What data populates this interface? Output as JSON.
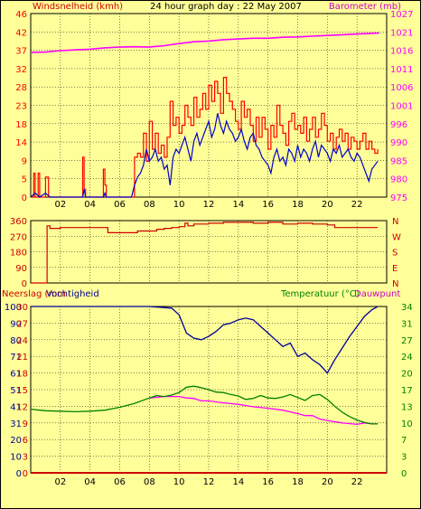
{
  "header": {
    "left_label": "Windsnelheid (kmh)",
    "title": "24 hour graph day : 22 May 2007",
    "right_label": "Barometer (mb)"
  },
  "colors": {
    "background": "#ffff99",
    "wind_gust": "#ff0000",
    "wind_avg": "#0000cc",
    "barometer": "#ff00ff",
    "direction": "#cc0000",
    "rain": "#cc0000",
    "humidity": "#000099",
    "temperature": "#008000",
    "dewpoint": "#ff00ff"
  },
  "chart_data": [
    {
      "type": "line",
      "name": "wind-and-barometer",
      "x_tick_labels": [
        "02",
        "04",
        "06",
        "08",
        "10",
        "12",
        "14",
        "16",
        "18",
        "20",
        "22"
      ],
      "x_range": [
        0,
        24
      ],
      "left_axis_ticks": [
        "46",
        "42",
        "37",
        "32",
        "28",
        "23",
        "18",
        "14",
        "9",
        "5",
        "0"
      ],
      "right_axis_ticks": [
        "1027",
        "1021",
        "1016",
        "1011",
        "1006",
        "1001",
        "996",
        "990",
        "985",
        "980",
        "975"
      ],
      "ylim_left": [
        0,
        46
      ],
      "ylim_right": [
        975,
        1027
      ],
      "grid": true,
      "series": [
        {
          "name": "Windsnelheid (kmh)",
          "role": "gust",
          "x": [
            0,
            0.2,
            0.3,
            0.4,
            0.5,
            0.6,
            0.8,
            1.0,
            1.2,
            2.0,
            3.4,
            3.5,
            3.6,
            3.7,
            4.5,
            4.9,
            5.0,
            5.1,
            5.3,
            6.8,
            7.0,
            7.2,
            7.4,
            7.6,
            7.8,
            8.0,
            8.2,
            8.4,
            8.6,
            8.8,
            9.0,
            9.2,
            9.4,
            9.6,
            9.8,
            10.0,
            10.2,
            10.4,
            10.6,
            10.8,
            11.0,
            11.2,
            11.4,
            11.6,
            11.8,
            12.0,
            12.2,
            12.4,
            12.6,
            12.8,
            13.0,
            13.2,
            13.4,
            13.6,
            13.8,
            14.0,
            14.2,
            14.4,
            14.6,
            14.8,
            15.0,
            15.2,
            15.4,
            15.6,
            15.8,
            16.0,
            16.2,
            16.4,
            16.6,
            16.8,
            17.0,
            17.2,
            17.4,
            17.6,
            17.8,
            18.0,
            18.2,
            18.4,
            18.6,
            18.8,
            19.0,
            19.2,
            19.4,
            19.6,
            19.8,
            20.0,
            20.2,
            20.4,
            20.6,
            20.8,
            21.0,
            21.2,
            21.4,
            21.6,
            21.8,
            22.0,
            22.2,
            22.4,
            22.6,
            22.8,
            23.0,
            23.2,
            23.4
          ],
          "y": [
            0,
            6,
            0,
            0,
            6,
            0,
            0,
            5,
            0,
            0,
            0,
            10,
            2,
            0,
            0,
            7,
            3,
            0,
            0,
            0,
            10,
            11,
            10,
            16,
            9,
            19,
            12,
            16,
            11,
            13,
            10,
            15,
            24,
            18,
            20,
            16,
            18,
            23,
            20,
            18,
            25,
            20,
            22,
            26,
            22,
            28,
            24,
            29,
            26,
            21,
            30,
            26,
            24,
            22,
            19,
            17,
            24,
            20,
            22,
            18,
            14,
            20,
            15,
            20,
            17,
            12,
            18,
            15,
            23,
            18,
            16,
            13,
            19,
            21,
            17,
            18,
            16,
            20,
            14,
            17,
            20,
            15,
            17,
            21,
            18,
            14,
            16,
            12,
            15,
            17,
            14,
            16,
            12,
            15,
            14,
            12,
            14,
            16,
            12,
            14,
            12,
            11,
            12
          ]
        },
        {
          "name": "Windsnelheid (kmh)",
          "role": "average",
          "x": [
            0,
            0.3,
            0.6,
            1.0,
            1.3,
            1.6,
            2.0,
            3.5,
            3.6,
            3.7,
            4.9,
            5.0,
            5.1,
            6.8,
            7.0,
            7.2,
            7.4,
            7.6,
            7.8,
            8.0,
            8.2,
            8.4,
            8.6,
            8.8,
            9.0,
            9.2,
            9.4,
            9.6,
            9.8,
            10.0,
            10.2,
            10.4,
            10.6,
            10.8,
            11.0,
            11.2,
            11.4,
            11.6,
            11.8,
            12.0,
            12.2,
            12.4,
            12.6,
            12.8,
            13.0,
            13.2,
            13.4,
            13.6,
            13.8,
            14.0,
            14.2,
            14.4,
            14.6,
            14.8,
            15.0,
            15.2,
            15.4,
            15.6,
            15.8,
            16.0,
            16.2,
            16.4,
            16.6,
            16.8,
            17.0,
            17.2,
            17.4,
            17.6,
            17.8,
            18.0,
            18.2,
            18.4,
            18.6,
            18.8,
            19.0,
            19.2,
            19.4,
            19.6,
            19.8,
            20.0,
            20.2,
            20.4,
            20.6,
            20.8,
            21.0,
            21.2,
            21.4,
            21.6,
            21.8,
            22.0,
            22.2,
            22.4,
            22.6,
            22.8,
            23.0,
            23.2,
            23.4
          ],
          "y": [
            0,
            1,
            0,
            1,
            0,
            0,
            0,
            0,
            2,
            0,
            0,
            1,
            0,
            0,
            3,
            5,
            6,
            8,
            12,
            9,
            10,
            12,
            9,
            10,
            7,
            8,
            3,
            10,
            12,
            11,
            13,
            15,
            12,
            9,
            14,
            16,
            13,
            15,
            17,
            19,
            15,
            17,
            21,
            18,
            16,
            19,
            17,
            16,
            14,
            15,
            17,
            14,
            12,
            15,
            16,
            13,
            12,
            10,
            9,
            8,
            6,
            10,
            12,
            9,
            10,
            8,
            12,
            11,
            9,
            13,
            10,
            12,
            11,
            9,
            12,
            14,
            10,
            13,
            12,
            11,
            9,
            12,
            11,
            13,
            10,
            11,
            12,
            10,
            9,
            11,
            10,
            8,
            6,
            4,
            7,
            8,
            9
          ]
        },
        {
          "name": "Barometer (mb)",
          "axis": "right",
          "x": [
            0,
            1,
            2,
            3,
            4,
            5,
            6,
            7,
            8,
            9,
            10,
            11,
            12,
            13,
            14,
            15,
            16,
            17,
            18,
            19,
            20,
            21,
            22,
            23,
            23.5
          ],
          "y": [
            1016,
            1016.1,
            1016.5,
            1016.7,
            1016.9,
            1017.3,
            1017.5,
            1017.6,
            1017.5,
            1017.9,
            1018.5,
            1019.0,
            1019.2,
            1019.6,
            1019.8,
            1020.0,
            1020.0,
            1020.3,
            1020.4,
            1020.6,
            1020.8,
            1021.0,
            1021.2,
            1021.4,
            1021.5
          ]
        }
      ]
    },
    {
      "type": "line",
      "name": "wind-direction",
      "x_range": [
        0,
        24
      ],
      "left_axis_ticks": [
        "360",
        "270",
        "180",
        "90",
        "0"
      ],
      "right_axis_ticks": [
        "N",
        "W",
        "S",
        "E",
        "N"
      ],
      "ylim": [
        0,
        360
      ],
      "grid": true,
      "series": [
        {
          "name": "direction",
          "x": [
            0,
            1.0,
            1.1,
            1.3,
            2.0,
            4.0,
            5.0,
            5.2,
            6.0,
            7.0,
            7.2,
            8.0,
            8.5,
            9.0,
            9.5,
            10.0,
            10.4,
            10.6,
            11.0,
            12.0,
            13.0,
            14.0,
            15.0,
            16.0,
            17.0,
            18.0,
            19.0,
            20.0,
            20.5,
            21.0,
            22.0,
            23.0,
            23.4
          ],
          "y": [
            0,
            0,
            330,
            315,
            320,
            320,
            320,
            290,
            290,
            290,
            300,
            300,
            310,
            315,
            320,
            325,
            345,
            330,
            340,
            345,
            350,
            350,
            345,
            350,
            340,
            345,
            340,
            335,
            320,
            320,
            320,
            320,
            320
          ]
        }
      ]
    },
    {
      "type": "line",
      "name": "rain-humidity-temperature",
      "x_tick_labels": [
        "02",
        "04",
        "06",
        "08",
        "10",
        "12",
        "14",
        "16",
        "18",
        "20",
        "22"
      ],
      "x_range": [
        0,
        24
      ],
      "left_label": "Neerslag (mm",
      "left_label_2": "Vochtigheid",
      "right_label": "Temperatuur (°C)",
      "right_label_2": "Dauwpunt",
      "left_axis_ticks": [
        "100",
        "90",
        "80",
        "71",
        "61",
        "51",
        "41",
        "31",
        "20",
        "10",
        "0"
      ],
      "left_axis_ticks_2": [
        "30",
        "27",
        "24",
        "21",
        "18",
        "15",
        "12",
        "9",
        "6",
        "3",
        "0"
      ],
      "right_axis_ticks": [
        "34",
        "31",
        "27",
        "24",
        "20",
        "17",
        "13",
        "10",
        "7",
        "3",
        "0"
      ],
      "ylim_left": [
        0,
        100
      ],
      "ylim_right": [
        0,
        34
      ],
      "grid": true,
      "series": [
        {
          "name": "Neerslag (mm",
          "x": [
            0,
            24
          ],
          "y": [
            0,
            0
          ]
        },
        {
          "name": "Vochtigheid",
          "x": [
            0,
            2,
            4,
            6,
            8,
            9.5,
            10.0,
            10.5,
            11.0,
            11.5,
            12.0,
            12.5,
            13.0,
            13.5,
            14.0,
            14.5,
            15.0,
            15.5,
            16.0,
            16.5,
            17.0,
            17.5,
            18.0,
            18.5,
            19.0,
            19.5,
            20.0,
            20.5,
            21.0,
            21.5,
            22.0,
            22.5,
            23.0,
            23.4
          ],
          "y": [
            100,
            100,
            100,
            100,
            100,
            99,
            95,
            84,
            81,
            80,
            82,
            85,
            89,
            90,
            92,
            93,
            92,
            88,
            84,
            80,
            76,
            78,
            70,
            72,
            68,
            65,
            60,
            68,
            75,
            82,
            88,
            94,
            98,
            100
          ]
        },
        {
          "name": "Temperatuur (°C)",
          "x": [
            0,
            1,
            2,
            3,
            4,
            5,
            6,
            7,
            8,
            8.5,
            9.0,
            9.5,
            10.0,
            10.5,
            11.0,
            11.5,
            12.0,
            12.5,
            13.0,
            13.5,
            14.0,
            14.5,
            15.0,
            15.5,
            16.0,
            16.5,
            17.0,
            17.5,
            18.0,
            18.5,
            19.0,
            19.5,
            20.0,
            20.5,
            21.0,
            21.5,
            22.0,
            22.5,
            23.0,
            23.4
          ],
          "y": [
            13.0,
            12.7,
            12.6,
            12.5,
            12.6,
            12.8,
            13.4,
            14.2,
            15.3,
            15.8,
            15.6,
            15.9,
            16.4,
            17.5,
            17.7,
            17.4,
            17.0,
            16.5,
            16.4,
            16.0,
            15.7,
            15.0,
            15.2,
            15.8,
            15.3,
            15.2,
            15.5,
            16.0,
            15.4,
            14.8,
            15.8,
            16.0,
            15.0,
            13.6,
            12.4,
            11.5,
            10.8,
            10.3,
            10.0,
            10.0
          ]
        },
        {
          "name": "Dauwpunt",
          "x": [
            8.0,
            9.0,
            10.0,
            10.5,
            11.0,
            11.5,
            12.0,
            13.0,
            14.0,
            15.0,
            16.0,
            17.0,
            18.0,
            18.5,
            19.0,
            19.5,
            20.0,
            21.0,
            22.0,
            22.5,
            23.0,
            23.4
          ],
          "y": [
            15.3,
            15.6,
            15.6,
            15.3,
            15.2,
            14.7,
            14.7,
            14.3,
            14.0,
            13.5,
            13.2,
            12.8,
            12.1,
            11.7,
            11.7,
            11.0,
            10.7,
            10.2,
            9.9,
            10.2,
            10.0,
            10.0
          ]
        }
      ]
    }
  ]
}
